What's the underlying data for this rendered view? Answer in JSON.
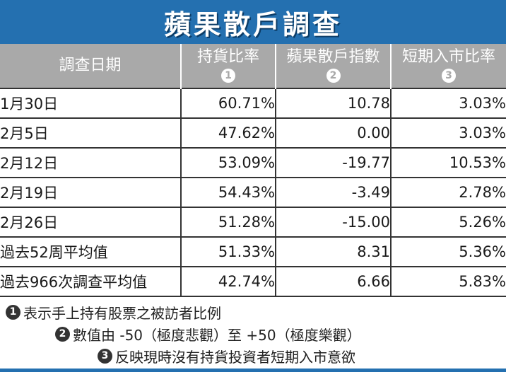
{
  "title": "蘋果散戶調查",
  "colors": {
    "title_background": "#2470b0",
    "header_background": "#a9a9a9",
    "rule_line": "#333333"
  },
  "columns": [
    {
      "label": "調查日期",
      "marker": ""
    },
    {
      "label": "持貨比率",
      "marker": "1"
    },
    {
      "label": "蘋果散戶指數",
      "marker": "2"
    },
    {
      "label": "短期入市比率",
      "marker": "3"
    }
  ],
  "rows": [
    {
      "date": "1月30日",
      "holding_ratio": "60.71%",
      "index": "10.78",
      "short_term_ratio": "3.03%"
    },
    {
      "date": "2月5日",
      "holding_ratio": "47.62%",
      "index": "0.00",
      "short_term_ratio": "3.03%"
    },
    {
      "date": "2月12日",
      "holding_ratio": "53.09%",
      "index": "-19.77",
      "short_term_ratio": "10.53%"
    },
    {
      "date": "2月19日",
      "holding_ratio": "54.43%",
      "index": "-3.49",
      "short_term_ratio": "2.78%"
    },
    {
      "date": "2月26日",
      "holding_ratio": "51.28%",
      "index": "-15.00",
      "short_term_ratio": "5.26%"
    },
    {
      "date": "過去52周平均值",
      "holding_ratio": "51.33%",
      "index": "8.31",
      "short_term_ratio": "5.36%"
    },
    {
      "date": "過去966次調查平均值",
      "holding_ratio": "42.74%",
      "index": "6.66",
      "short_term_ratio": "5.83%"
    }
  ],
  "notes": [
    {
      "marker": "1",
      "text": "表示手上持有股票之被訪者比例"
    },
    {
      "marker": "2",
      "text": "數值由 -50（極度悲觀）至 +50（極度樂觀）"
    },
    {
      "marker": "3",
      "text": "反映現時沒有持貨投資者短期入市意欲"
    }
  ]
}
